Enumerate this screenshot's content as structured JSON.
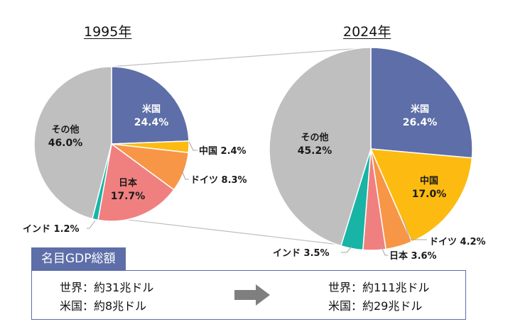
{
  "chart_data": [
    {
      "type": "pie",
      "title": "1995年",
      "slices": [
        {
          "name": "米国",
          "value": 24.4,
          "color": "#5d6ea8"
        },
        {
          "name": "中国",
          "value": 2.4,
          "color": "#fdbb11"
        },
        {
          "name": "ドイツ",
          "value": 8.3,
          "color": "#f79646"
        },
        {
          "name": "日本",
          "value": 17.7,
          "color": "#f08080"
        },
        {
          "name": "インド",
          "value": 1.2,
          "color": "#18b4a5"
        },
        {
          "name": "その他",
          "value": 46.0,
          "color": "#bfbfbf"
        }
      ],
      "labels": {
        "米国": "24.4%",
        "中国": "2.4%",
        "ドイツ": "8.3%",
        "日本": "17.7%",
        "インド": "1.2%",
        "その他": "46.0%"
      }
    },
    {
      "type": "pie",
      "title": "2024年",
      "slices": [
        {
          "name": "米国",
          "value": 26.4,
          "color": "#5d6ea8"
        },
        {
          "name": "中国",
          "value": 17.0,
          "color": "#fdbb11"
        },
        {
          "name": "ドイツ",
          "value": 4.2,
          "color": "#f79646"
        },
        {
          "name": "日本",
          "value": 3.6,
          "color": "#f08080"
        },
        {
          "name": "インド",
          "value": 3.5,
          "color": "#18b4a5"
        },
        {
          "name": "その他",
          "value": 45.2,
          "color": "#bfbfbf"
        }
      ],
      "labels": {
        "米国": "26.4%",
        "中国": "17.0%",
        "ドイツ": "4.2%",
        "日本": "3.6%",
        "インド": "3.5%",
        "その他": "45.2%"
      }
    }
  ],
  "summary": {
    "header": "名目GDP総額",
    "before": {
      "world": "世界：約31兆ドル",
      "us": "米国：約8兆ドル"
    },
    "after": {
      "world": "世界：約111兆ドル",
      "us": "米国：約29兆ドル"
    }
  },
  "colors": {
    "accent": "#5d6ea8",
    "arrow": "#7f7f7f",
    "leader": "#bfbfbf"
  }
}
